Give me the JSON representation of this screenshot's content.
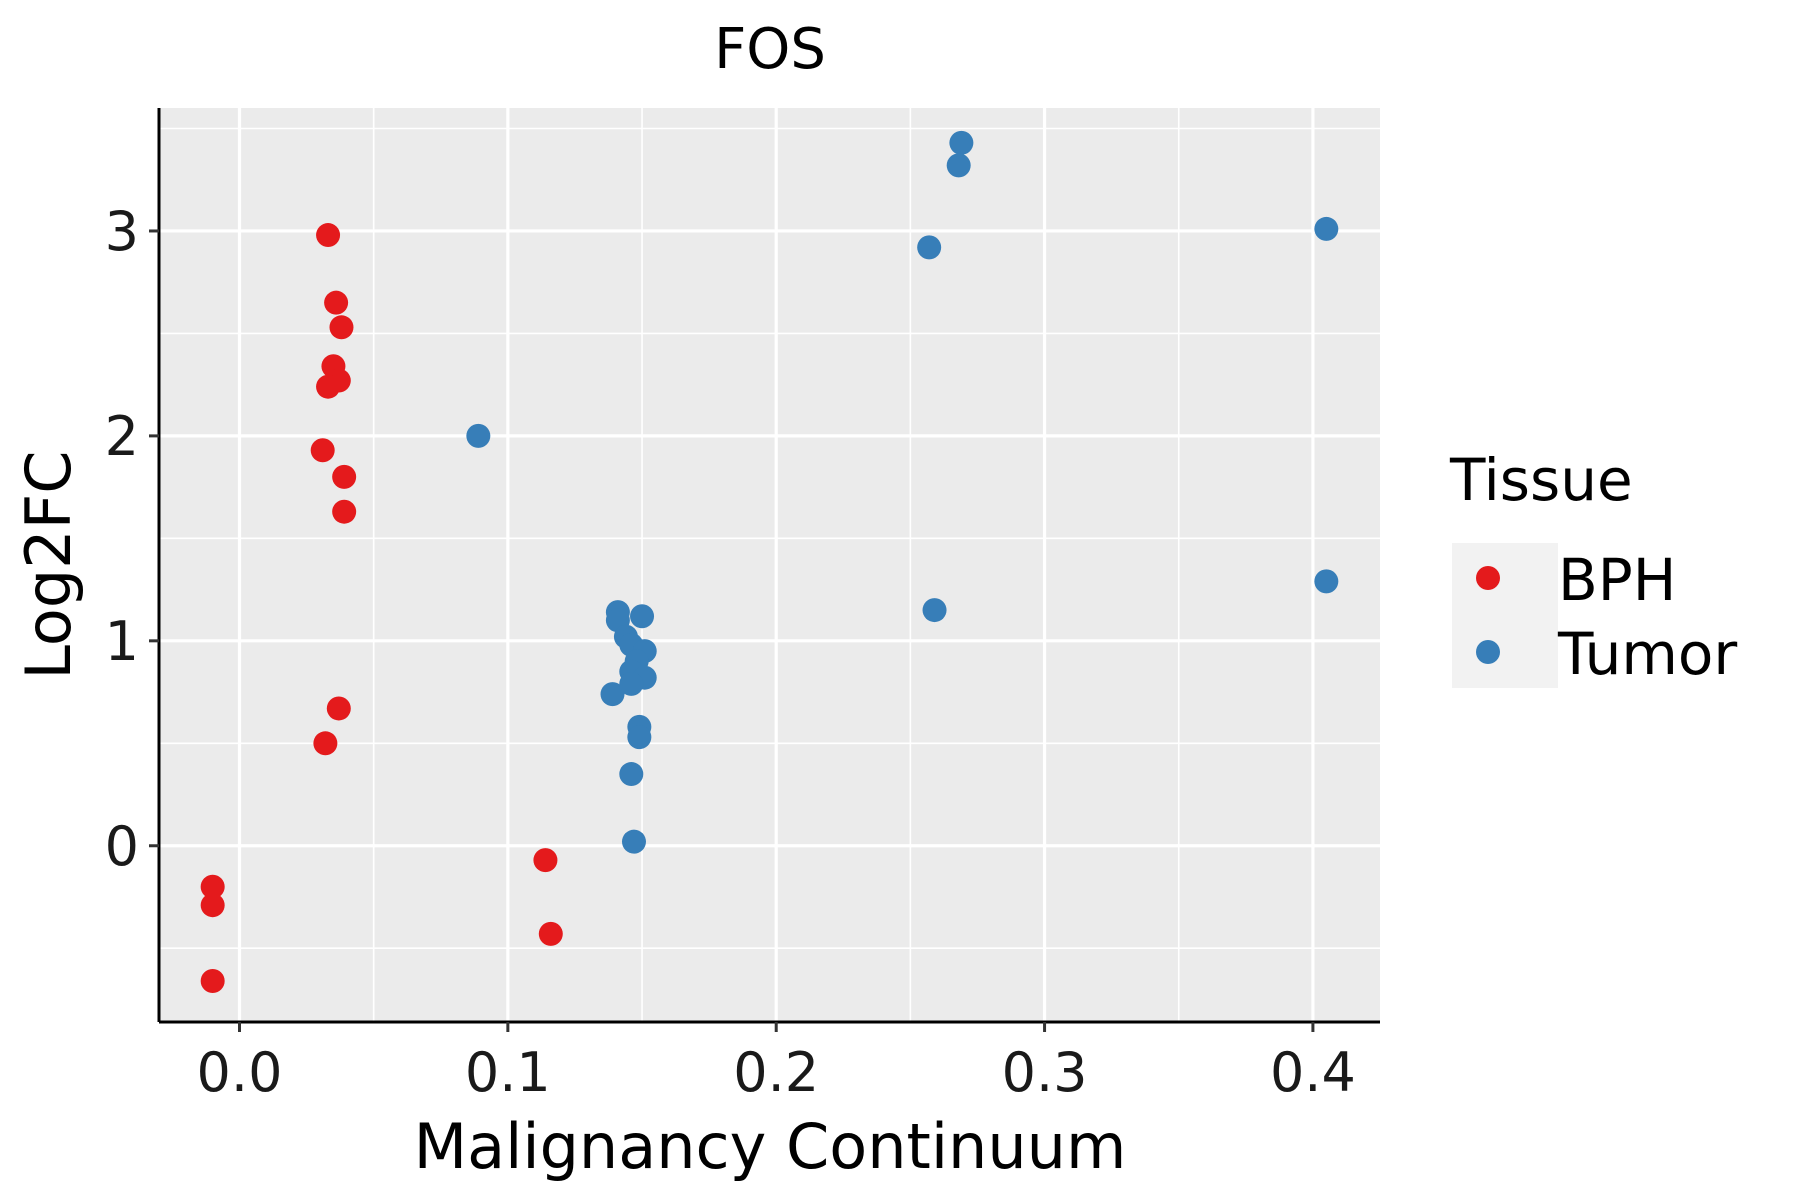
{
  "colors": {
    "panel": "#EBEBEB",
    "grid": "#FFFFFF",
    "axis": "#000000",
    "BPH": "#E41A1C",
    "Tumor": "#377EB8"
  },
  "chart_data": {
    "type": "scatter",
    "title": "FOS",
    "xlabel": "Malignancy Continuum",
    "ylabel": "Log2FC",
    "xlim": [
      -0.03,
      0.425
    ],
    "ylim": [
      -0.86,
      3.6
    ],
    "x_ticks": [
      0.0,
      0.1,
      0.2,
      0.3,
      0.4
    ],
    "x_tick_labels": [
      "0.0",
      "0.1",
      "0.2",
      "0.3",
      "0.4"
    ],
    "y_ticks": [
      0,
      1,
      2,
      3
    ],
    "y_tick_labels": [
      "0",
      "1",
      "2",
      "3"
    ],
    "grid": true,
    "legend": {
      "title": "Tissue",
      "position": "right",
      "entries": [
        "BPH",
        "Tumor"
      ]
    },
    "series": [
      {
        "name": "BPH",
        "points": [
          {
            "x": 0.033,
            "y": 2.98
          },
          {
            "x": 0.036,
            "y": 2.65
          },
          {
            "x": 0.038,
            "y": 2.53
          },
          {
            "x": 0.035,
            "y": 2.34
          },
          {
            "x": 0.037,
            "y": 2.27
          },
          {
            "x": 0.033,
            "y": 2.24
          },
          {
            "x": 0.031,
            "y": 1.93
          },
          {
            "x": 0.039,
            "y": 1.8
          },
          {
            "x": 0.039,
            "y": 1.63
          },
          {
            "x": 0.037,
            "y": 0.67
          },
          {
            "x": 0.032,
            "y": 0.5
          },
          {
            "x": -0.01,
            "y": -0.2
          },
          {
            "x": -0.01,
            "y": -0.29
          },
          {
            "x": -0.01,
            "y": -0.66
          },
          {
            "x": 0.114,
            "y": -0.07
          },
          {
            "x": 0.116,
            "y": -0.43
          }
        ]
      },
      {
        "name": "Tumor",
        "points": [
          {
            "x": 0.269,
            "y": 3.43
          },
          {
            "x": 0.268,
            "y": 3.32
          },
          {
            "x": 0.257,
            "y": 2.92
          },
          {
            "x": 0.405,
            "y": 3.01
          },
          {
            "x": 0.405,
            "y": 1.29
          },
          {
            "x": 0.259,
            "y": 1.15
          },
          {
            "x": 0.089,
            "y": 2.0
          },
          {
            "x": 0.141,
            "y": 1.14
          },
          {
            "x": 0.141,
            "y": 1.1
          },
          {
            "x": 0.15,
            "y": 1.12
          },
          {
            "x": 0.144,
            "y": 1.02
          },
          {
            "x": 0.146,
            "y": 0.98
          },
          {
            "x": 0.151,
            "y": 0.95
          },
          {
            "x": 0.148,
            "y": 0.9
          },
          {
            "x": 0.146,
            "y": 0.85
          },
          {
            "x": 0.151,
            "y": 0.82
          },
          {
            "x": 0.146,
            "y": 0.79
          },
          {
            "x": 0.139,
            "y": 0.74
          },
          {
            "x": 0.149,
            "y": 0.58
          },
          {
            "x": 0.149,
            "y": 0.53
          },
          {
            "x": 0.146,
            "y": 0.35
          },
          {
            "x": 0.147,
            "y": 0.02
          }
        ]
      }
    ]
  }
}
